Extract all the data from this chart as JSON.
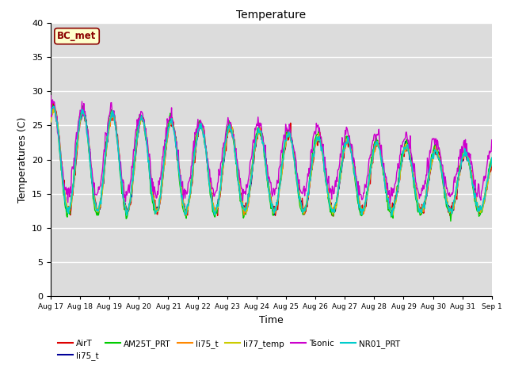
{
  "title": "Temperature",
  "xlabel": "Time",
  "ylabel": "Temperatures (C)",
  "ylim": [
    0,
    40
  ],
  "yticks": [
    0,
    5,
    10,
    15,
    20,
    25,
    30,
    35,
    40
  ],
  "background_color": "#dcdcdc",
  "annotation_text": "BC_met",
  "annotation_bg": "#ffffcc",
  "annotation_border": "#8b0000",
  "series": [
    {
      "label": "AirT",
      "color": "#dd0000",
      "lw": 1.0
    },
    {
      "label": "li75_t",
      "color": "#000099",
      "lw": 1.0
    },
    {
      "label": "AM25T_PRT",
      "color": "#00cc00",
      "lw": 1.0
    },
    {
      "label": "li75_t",
      "color": "#ff8800",
      "lw": 1.0
    },
    {
      "label": "li77_temp",
      "color": "#cccc00",
      "lw": 1.0
    },
    {
      "label": "Tsonic",
      "color": "#cc00cc",
      "lw": 1.0
    },
    {
      "label": "NR01_PRT",
      "color": "#00cccc",
      "lw": 1.2
    }
  ],
  "n_days": 15,
  "start_day": 17
}
